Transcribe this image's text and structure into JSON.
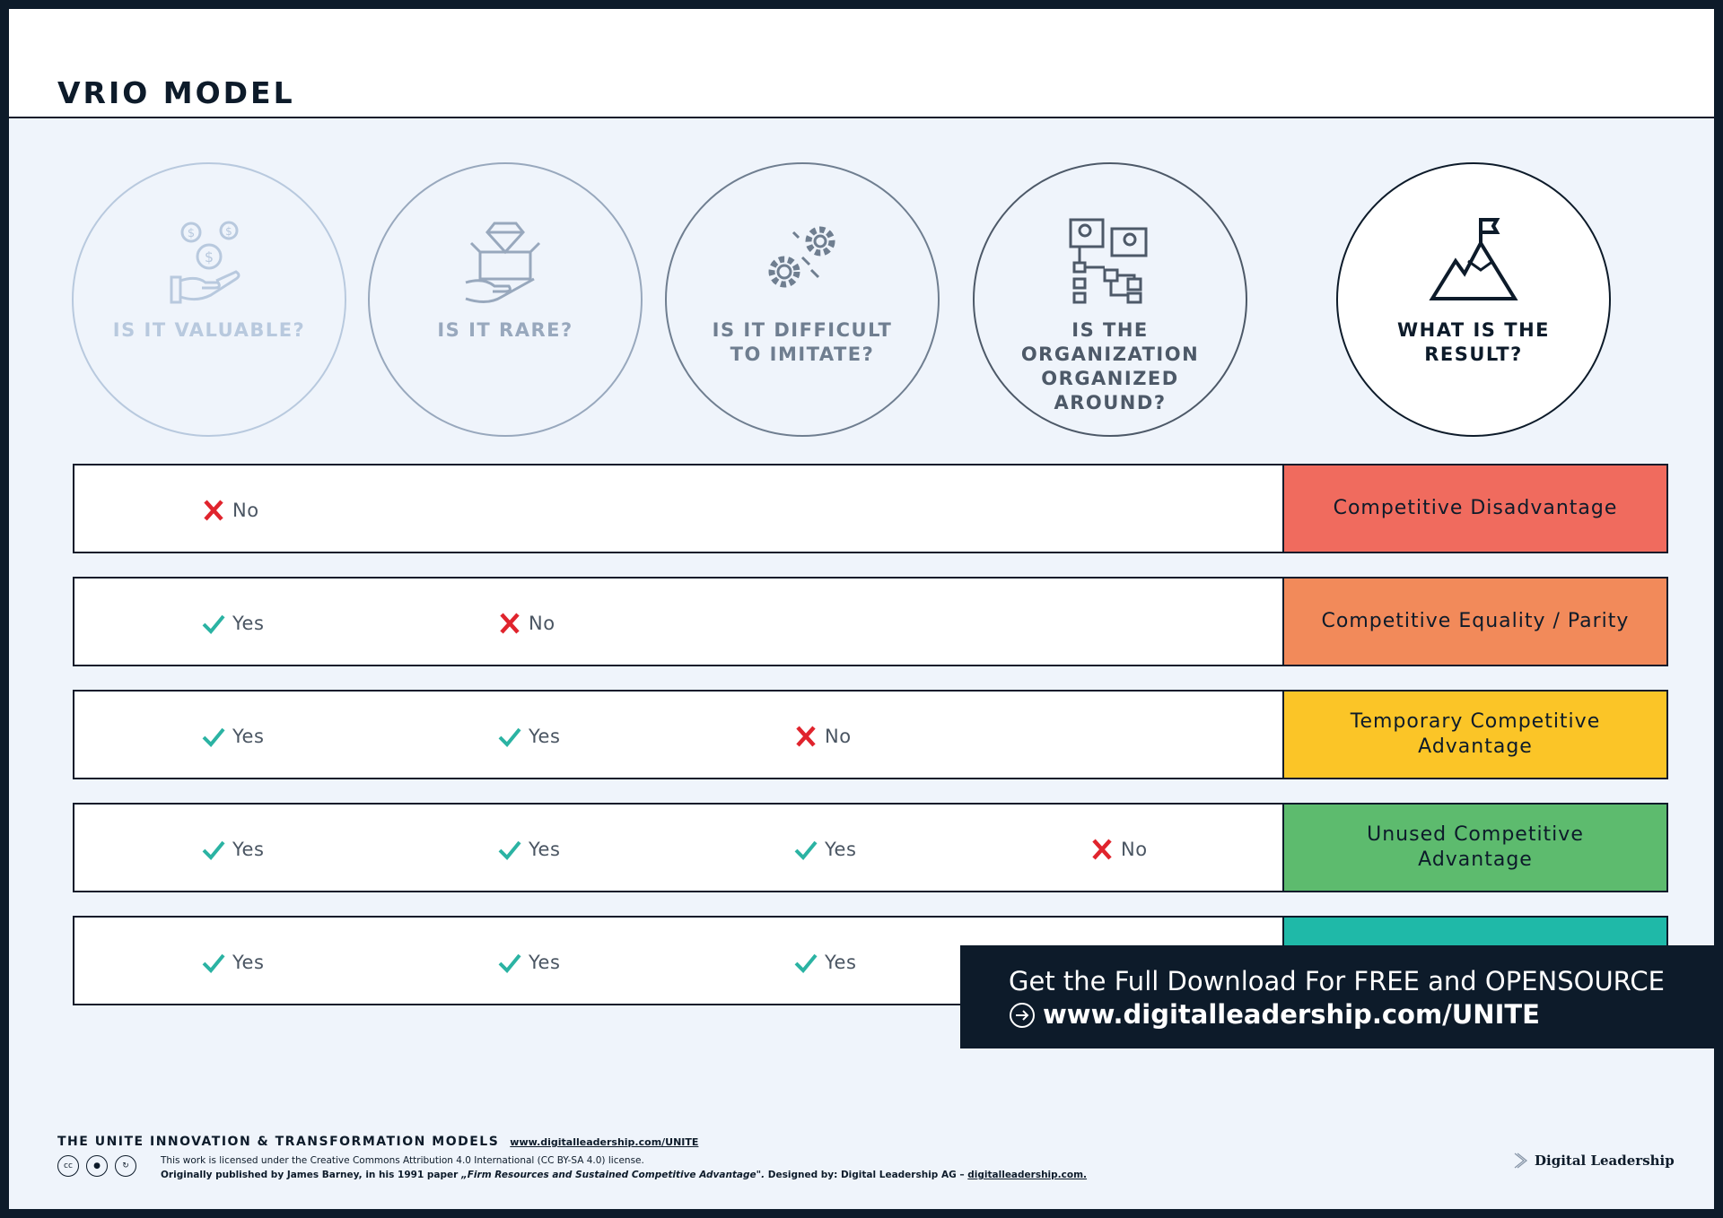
{
  "title": "VRIO MODEL",
  "questions": [
    {
      "label": "IS IT VALUABLE?",
      "icon": "money-hand-icon",
      "color": "#b8c9de"
    },
    {
      "label": "IS IT RARE?",
      "icon": "diamond-box-icon",
      "color": "#98a8bd"
    },
    {
      "label": "IS IT DIFFICULT TO IMITATE?",
      "icon": "gears-icon",
      "color": "#6f7e90"
    },
    {
      "label": "IS THE ORGANIZATION ORGANIZED AROUND?",
      "icon": "org-chart-icon",
      "color": "#4d5968"
    },
    {
      "label": "WHAT IS THE RESULT?",
      "icon": "mountain-flag-icon",
      "color": "#0d1b2a"
    }
  ],
  "rows": [
    {
      "answers": [
        "No"
      ],
      "result": "Competitive Disadvantage",
      "color": "#f06b5e"
    },
    {
      "answers": [
        "Yes",
        "No"
      ],
      "result": "Competitive Equality / Parity",
      "color": "#f28a5a"
    },
    {
      "answers": [
        "Yes",
        "Yes",
        "No"
      ],
      "result": "Temporary Competitive Advantage",
      "color": "#fbc527"
    },
    {
      "answers": [
        "Yes",
        "Yes",
        "Yes",
        "No"
      ],
      "result": "Unused Competitive Advantage",
      "color": "#5dbb6e"
    },
    {
      "answers": [
        "Yes",
        "Yes",
        "Yes"
      ],
      "result": "",
      "color": "#1fb9a8"
    }
  ],
  "colors": {
    "yes": "#2bb3a3",
    "no": "#e0242d"
  },
  "banner": {
    "line1": "Get the Full Download For FREE and OPENSOURCE",
    "url": "www.digitalleadership.com/UNITE"
  },
  "footer": {
    "heading": "THE UNITE INNOVATION & TRANSFORMATION MODELS",
    "link": "www.digitalleadership.com/UNITE",
    "license": "This work is licensed under the Creative Commons Attribution 4.0 International (CC BY-SA 4.0) license.",
    "credit_prefix": "Originally published by James Barney, in his 1991 paper ",
    "credit_paper": "„Firm Resources and Sustained Competitive Advantage\".",
    "credit_suffix": " Designed by: Digital Leadership AG – ",
    "credit_link": "digitalleadership.com.",
    "cc_labels": [
      "cc",
      "by",
      "sa"
    ],
    "logo": "Digital Leadership"
  }
}
